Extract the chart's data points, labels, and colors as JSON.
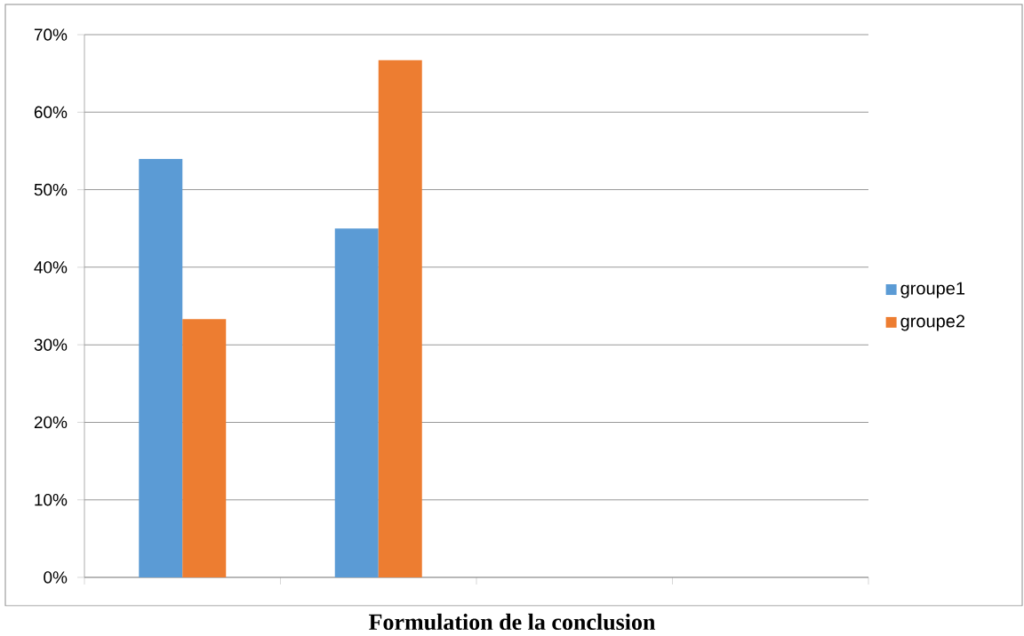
{
  "chart_data": {
    "type": "bar",
    "title": "Formulation de la conclusion",
    "categories": [
      null,
      null,
      null,
      null
    ],
    "series": [
      {
        "name": "groupe1",
        "color": "#5b9bd5",
        "values": [
          54,
          45,
          null,
          null
        ]
      },
      {
        "name": "groupe2",
        "color": "#ed7d31",
        "values": [
          33.3,
          66.7,
          null,
          null
        ]
      }
    ],
    "ylim": [
      0,
      70
    ],
    "yticks": [
      {
        "value": 0,
        "label": "0%"
      },
      {
        "value": 10,
        "label": "10%"
      },
      {
        "value": 20,
        "label": "20%"
      },
      {
        "value": 30,
        "label": "30%"
      },
      {
        "value": 40,
        "label": "40%"
      },
      {
        "value": 50,
        "label": "50%"
      },
      {
        "value": 60,
        "label": "60%"
      },
      {
        "value": 70,
        "label": "70%"
      }
    ],
    "grid": "y",
    "legend": "right"
  }
}
